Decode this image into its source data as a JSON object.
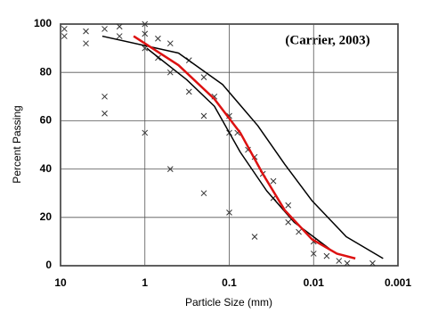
{
  "chart_data": {
    "type": "scatter",
    "annotation": "(Carrier, 2003)",
    "xlabel": "Particle Size (mm)",
    "ylabel": "Percent Passing",
    "xscale": "log",
    "xlim": [
      10,
      0.001
    ],
    "xticks": [
      10,
      1,
      0.1,
      0.01,
      0.001
    ],
    "ylim": [
      0,
      100
    ],
    "yticks": [
      0,
      20,
      40,
      60,
      80,
      100
    ],
    "grid": true,
    "series": [
      {
        "style": "markers",
        "color": "#333333",
        "x": [
          9,
          9,
          5,
          5,
          3,
          3,
          2,
          2,
          1,
          1,
          1,
          0.7,
          0.7,
          0.5,
          0.5,
          0.3,
          0.3,
          0.2,
          0.2,
          0.15,
          0.1,
          0.1,
          0.08,
          0.06,
          0.05,
          0.04,
          0.03,
          0.03,
          0.02,
          0.02,
          0.015,
          0.01,
          0.01,
          0.007,
          0.005,
          0.004,
          0.002,
          3,
          1,
          0.5,
          0.2,
          0.1,
          0.05
        ],
        "values": [
          98,
          95,
          97,
          92,
          98,
          70,
          99,
          95,
          100,
          96,
          90,
          94,
          86,
          92,
          80,
          85,
          72,
          78,
          62,
          70,
          62,
          55,
          55,
          48,
          45,
          38,
          35,
          28,
          25,
          18,
          14,
          10,
          5,
          4,
          2,
          1,
          1,
          63,
          55,
          40,
          30,
          22,
          12
        ]
      },
      {
        "style": "line",
        "color": "#000000",
        "x": [
          3.2,
          0.4,
          0.12,
          0.046,
          0.022,
          0.0105,
          0.0041,
          0.0015
        ],
        "values": [
          95,
          88,
          75,
          58,
          42,
          27,
          12,
          3
        ]
      },
      {
        "style": "line",
        "color": "#000000",
        "x": [
          0.95,
          0.32,
          0.15,
          0.074,
          0.036,
          0.017,
          0.0065
        ],
        "values": [
          90,
          77,
          66,
          47,
          31,
          18,
          7
        ]
      },
      {
        "style": "line",
        "color": "#dd1111",
        "x": [
          1.36,
          0.4,
          0.15,
          0.074,
          0.04,
          0.022,
          0.0105,
          0.0053,
          0.0032
        ],
        "values": [
          95,
          83,
          69,
          55,
          38,
          23,
          11,
          5,
          3
        ]
      }
    ]
  }
}
